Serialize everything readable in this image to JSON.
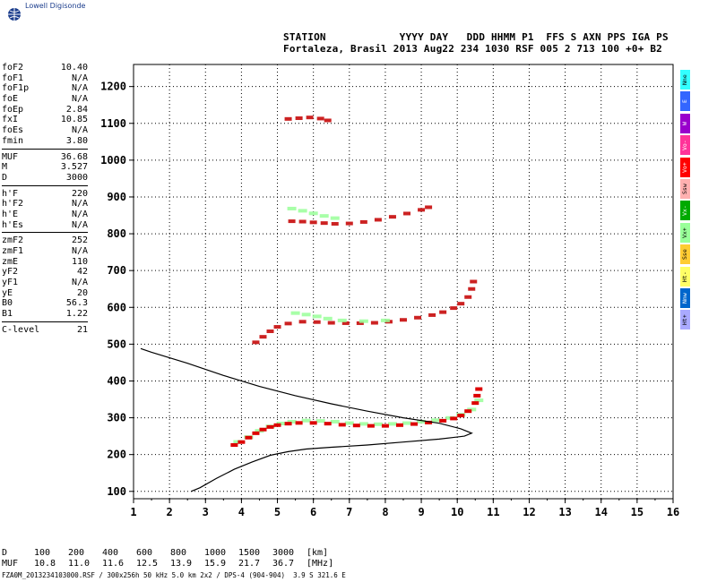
{
  "logo": {
    "text": "Lowell Digisonde",
    "icon": "globe-icon"
  },
  "header": {
    "line1": "STATION            YYYY DAY   DDD HHMM P1  FFS S AXN PPS IGA PS",
    "line2": "Fortaleza, Brasil 2013 Aug22 234 1030 RSF 005 2 713 100 +0+ B2"
  },
  "params": {
    "group1": [
      {
        "name": "foF2",
        "value": "10.40"
      },
      {
        "name": "foF1",
        "value": "N/A"
      },
      {
        "name": "foF1p",
        "value": "N/A"
      },
      {
        "name": "foE",
        "value": "N/A"
      },
      {
        "name": "foEp",
        "value": "2.84"
      },
      {
        "name": "fxI",
        "value": "10.85"
      },
      {
        "name": "foEs",
        "value": "N/A"
      },
      {
        "name": "fmin",
        "value": "3.80"
      }
    ],
    "group2": [
      {
        "name": "MUF",
        "value": "36.68"
      },
      {
        "name": "M",
        "value": "3.527"
      },
      {
        "name": "D",
        "value": "3000"
      }
    ],
    "group3": [
      {
        "name": "h'F",
        "value": "220"
      },
      {
        "name": "h'F2",
        "value": "N/A"
      },
      {
        "name": "h'E",
        "value": "N/A"
      },
      {
        "name": "h'Es",
        "value": "N/A"
      }
    ],
    "group4": [
      {
        "name": "zmF2",
        "value": "252"
      },
      {
        "name": "zmF1",
        "value": "N/A"
      },
      {
        "name": "zmE",
        "value": "110"
      },
      {
        "name": "yF2",
        "value": "42"
      },
      {
        "name": "yF1",
        "value": "N/A"
      },
      {
        "name": "yE",
        "value": "20"
      },
      {
        "name": "B0",
        "value": "56.3"
      },
      {
        "name": "B1",
        "value": "1.22"
      }
    ],
    "group5": [
      {
        "name": "C-level",
        "value": "21"
      }
    ]
  },
  "legend": [
    {
      "label": "Nne",
      "color": "#33ffff"
    },
    {
      "label": "E",
      "color": "#3366ff"
    },
    {
      "label": "W",
      "color": "#9900cc"
    },
    {
      "label": "Vo-",
      "color": "#ff3399"
    },
    {
      "label": "Vo+",
      "color": "#ff0000"
    },
    {
      "label": "Ssw",
      "color": "#ffb0b0"
    },
    {
      "label": "Vx-",
      "color": "#00aa00"
    },
    {
      "label": "Vx+",
      "color": "#99ff99"
    },
    {
      "label": "Sse",
      "color": "#ffcc33"
    },
    {
      "label": "Ht-",
      "color": "#ffff66"
    },
    {
      "label": "Nnw",
      "color": "#0066cc"
    },
    {
      "label": "Ht+",
      "color": "#aaaaff"
    }
  ],
  "muf_table": {
    "d_label": "D",
    "muf_label": "MUF",
    "d_values": [
      "100",
      "200",
      "400",
      "600",
      "800",
      "1000",
      "1500",
      "3000"
    ],
    "muf_values": [
      "10.8",
      "11.0",
      "11.6",
      "12.5",
      "13.9",
      "15.9",
      "21.7",
      "36.7"
    ],
    "d_unit": "[km]",
    "muf_unit": "[MHz]"
  },
  "footer": "FZA0M_2013234103000.RSF / 300x256h 50 kHz 5.0 km 2x2 / DPS-4 (904-904)  3.9 S 321.6 E",
  "chart_data": {
    "type": "scatter",
    "xlabel": "",
    "ylabel": "",
    "x_ticks": [
      "1",
      "2",
      "3",
      "4",
      "5",
      "6",
      "7",
      "8",
      "9",
      "10",
      "11",
      "12",
      "13",
      "14",
      "15",
      "16"
    ],
    "y_ticks": [
      "100",
      "200",
      "300",
      "400",
      "500",
      "600",
      "700",
      "800",
      "900",
      "1000",
      "1100",
      "1200"
    ],
    "xlim": [
      1,
      16
    ],
    "ylim": [
      80,
      1260
    ],
    "grid": true,
    "series": [
      {
        "kind": "o-trace-vx+",
        "color": "#99ff99",
        "points": [
          [
            3.9,
            232
          ],
          [
            4.2,
            245
          ],
          [
            4.5,
            262
          ],
          [
            4.8,
            274
          ],
          [
            5.1,
            282
          ],
          [
            5.4,
            287
          ],
          [
            5.8,
            290
          ],
          [
            6.2,
            289
          ],
          [
            6.6,
            287
          ],
          [
            7.0,
            283
          ],
          [
            7.4,
            281
          ],
          [
            7.8,
            280
          ],
          [
            8.2,
            281
          ],
          [
            8.6,
            283
          ],
          [
            9.0,
            287
          ],
          [
            9.4,
            291
          ],
          [
            9.8,
            297
          ],
          [
            10.1,
            306
          ],
          [
            10.4,
            320
          ],
          [
            10.6,
            345
          ]
        ]
      },
      {
        "kind": "o-trace-vo+",
        "color": "#dd0000",
        "points": [
          [
            3.8,
            226
          ],
          [
            4.0,
            234
          ],
          [
            4.2,
            246
          ],
          [
            4.4,
            258
          ],
          [
            4.6,
            268
          ],
          [
            4.8,
            275
          ],
          [
            5.0,
            280
          ],
          [
            5.3,
            284
          ],
          [
            5.6,
            286
          ],
          [
            6.0,
            286
          ],
          [
            6.4,
            284
          ],
          [
            6.8,
            281
          ],
          [
            7.2,
            279
          ],
          [
            7.6,
            278
          ],
          [
            8.0,
            278
          ],
          [
            8.4,
            280
          ],
          [
            8.8,
            283
          ],
          [
            9.2,
            287
          ],
          [
            9.6,
            292
          ],
          [
            9.9,
            298
          ],
          [
            10.1,
            306
          ],
          [
            10.3,
            318
          ],
          [
            10.5,
            340
          ],
          [
            10.55,
            360
          ],
          [
            10.6,
            378
          ]
        ]
      },
      {
        "kind": "2nd-hop-vo+",
        "color": "#cc2222",
        "points": [
          [
            4.4,
            505
          ],
          [
            4.6,
            520
          ],
          [
            4.8,
            535
          ],
          [
            5.0,
            547
          ],
          [
            5.3,
            556
          ],
          [
            5.7,
            561
          ],
          [
            6.1,
            560
          ],
          [
            6.5,
            558
          ],
          [
            6.9,
            557
          ],
          [
            7.3,
            557
          ],
          [
            7.7,
            558
          ],
          [
            8.1,
            561
          ],
          [
            8.5,
            566
          ],
          [
            8.9,
            572
          ],
          [
            9.3,
            579
          ],
          [
            9.6,
            587
          ],
          [
            9.9,
            598
          ],
          [
            10.1,
            610
          ],
          [
            10.3,
            628
          ],
          [
            10.4,
            650
          ],
          [
            10.45,
            670
          ]
        ]
      },
      {
        "kind": "2nd-hop-vx+",
        "color": "#99ff99",
        "points": [
          [
            5.5,
            582
          ],
          [
            5.8,
            578
          ],
          [
            6.1,
            573
          ],
          [
            6.4,
            567
          ],
          [
            6.8,
            562
          ],
          [
            7.4,
            560
          ],
          [
            8.0,
            562
          ]
        ]
      },
      {
        "kind": "3rd-hop-vo+",
        "color": "#cc2222",
        "points": [
          [
            5.4,
            834
          ],
          [
            5.7,
            833
          ],
          [
            6.0,
            831
          ],
          [
            6.3,
            829
          ],
          [
            6.6,
            827
          ],
          [
            7.0,
            828
          ],
          [
            7.4,
            832
          ],
          [
            7.8,
            838
          ],
          [
            8.2,
            846
          ],
          [
            8.6,
            855
          ],
          [
            9.0,
            865
          ],
          [
            9.2,
            872
          ]
        ]
      },
      {
        "kind": "3rd-hop-vx+",
        "color": "#99ff99",
        "points": [
          [
            5.4,
            866
          ],
          [
            5.7,
            860
          ],
          [
            6.0,
            853
          ],
          [
            6.3,
            846
          ],
          [
            6.6,
            840
          ]
        ]
      },
      {
        "kind": "4th-hop-vo+",
        "color": "#cc2222",
        "points": [
          [
            5.3,
            1112
          ],
          [
            5.6,
            1114
          ],
          [
            5.9,
            1116
          ],
          [
            6.2,
            1113
          ],
          [
            6.4,
            1108
          ]
        ]
      }
    ],
    "profile": [
      [
        2.6,
        100
      ],
      [
        2.85,
        110
      ],
      [
        3.3,
        135
      ],
      [
        3.8,
        160
      ],
      [
        4.3,
        180
      ],
      [
        4.8,
        198
      ],
      [
        5.3,
        208
      ],
      [
        5.8,
        215
      ],
      [
        6.5,
        220
      ],
      [
        7.5,
        226
      ],
      [
        8.5,
        234
      ],
      [
        9.5,
        242
      ],
      [
        10.2,
        250
      ],
      [
        10.4,
        258
      ],
      [
        10.1,
        270
      ],
      [
        9.5,
        285
      ],
      [
        8.5,
        300
      ],
      [
        7.5,
        318
      ],
      [
        6.5,
        338
      ],
      [
        5.5,
        360
      ],
      [
        4.5,
        385
      ],
      [
        3.5,
        415
      ],
      [
        2.5,
        448
      ],
      [
        1.5,
        478
      ],
      [
        1.2,
        488
      ]
    ]
  }
}
